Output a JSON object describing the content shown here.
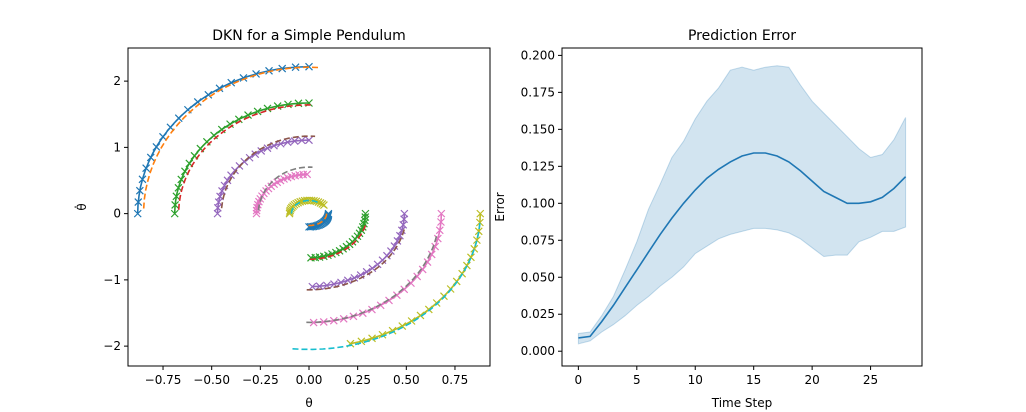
{
  "chart_data": [
    {
      "type": "line",
      "title": "DKN for a Simple Pendulum",
      "xlabel": "θ",
      "ylabel": "θ̇",
      "xlim": [
        -0.93,
        0.93
      ],
      "ylim": [
        -2.3,
        2.5
      ],
      "xticks": [
        -0.75,
        -0.5,
        -0.25,
        0.0,
        0.25,
        0.5,
        0.75
      ],
      "xtick_labels": [
        "−0.75",
        "−0.50",
        "−0.25",
        "0.00",
        "0.25",
        "0.50",
        "0.75"
      ],
      "yticks": [
        -2,
        -1,
        0,
        1,
        2
      ],
      "ytick_labels": [
        "−2",
        "−1",
        "0",
        "1",
        "2"
      ],
      "grid": false,
      "note": "Each trajectory: predicted (solid/dashed line) vs measured (x markers), arcs of phase-space orbits",
      "series": [
        {
          "color": "#1f77b4",
          "style": "solid+x",
          "amplitude": 0.88,
          "start_angle": 180,
          "end_angle": 90,
          "yscale": 2.52
        },
        {
          "color": "#ff7f0e",
          "style": "dashed",
          "amplitude": 0.85,
          "start_angle": 178,
          "end_angle": 86,
          "yscale": 2.6
        },
        {
          "color": "#2ca02c",
          "style": "solid+x",
          "amplitude": 0.69,
          "start_angle": 180,
          "end_angle": 90,
          "yscale": 2.42
        },
        {
          "color": "#d62728",
          "style": "dashed",
          "amplitude": 0.67,
          "start_angle": 178,
          "end_angle": 88,
          "yscale": 2.45
        },
        {
          "color": "#9467bd",
          "style": "solid+x",
          "amplitude": 0.47,
          "start_angle": 180,
          "end_angle": 90,
          "yscale": 2.36
        },
        {
          "color": "#8c564b",
          "style": "dashed",
          "amplitude": 0.45,
          "start_angle": 176,
          "end_angle": 86,
          "yscale": 2.6
        },
        {
          "color": "#e377c2",
          "style": "solid+x",
          "amplitude": 0.27,
          "start_angle": 180,
          "end_angle": 92,
          "yscale": 2.2
        },
        {
          "color": "#7f7f7f",
          "style": "dashed",
          "amplitude": 0.26,
          "start_angle": 176,
          "end_angle": 86,
          "yscale": 2.7
        },
        {
          "color": "#bcbd22",
          "style": "solid+x",
          "amplitude": 0.1,
          "start_angle": 180,
          "end_angle": 40,
          "yscale": 2.0
        },
        {
          "color": "#17becf",
          "style": "dashed",
          "amplitude": 0.09,
          "start_angle": 180,
          "end_angle": 60,
          "yscale": 2.2
        },
        {
          "color": "#1f77b4",
          "style": "solid+x",
          "amplitude": 0.1,
          "start_angle": 0,
          "end_angle": -90,
          "yscale": 2.0
        },
        {
          "color": "#ff7f0e",
          "style": "dashed",
          "amplitude": 0.09,
          "start_angle": 0,
          "end_angle": -100,
          "yscale": 2.0
        },
        {
          "color": "#2ca02c",
          "style": "solid+x",
          "amplitude": 0.29,
          "start_angle": 0,
          "end_angle": -88,
          "yscale": 2.3
        },
        {
          "color": "#d62728",
          "style": "dashed",
          "amplitude": 0.3,
          "start_angle": -15,
          "end_angle": -92,
          "yscale": 2.3
        },
        {
          "color": "#9467bd",
          "style": "solid+x",
          "amplitude": 0.49,
          "start_angle": 0,
          "end_angle": -88,
          "yscale": 2.25
        },
        {
          "color": "#8c564b",
          "style": "dashed",
          "amplitude": 0.5,
          "start_angle": -12,
          "end_angle": -92,
          "yscale": 2.3
        },
        {
          "color": "#e377c2",
          "style": "solid+x",
          "amplitude": 0.68,
          "start_angle": 0,
          "end_angle": -88,
          "yscale": 2.42
        },
        {
          "color": "#7f7f7f",
          "style": "dashed",
          "amplitude": 0.67,
          "start_angle": -12,
          "end_angle": -92,
          "yscale": 2.45
        },
        {
          "color": "#bcbd22",
          "style": "solid+x",
          "amplitude": 0.88,
          "start_angle": 0,
          "end_angle": -76,
          "yscale": 2.3
        },
        {
          "color": "#17becf",
          "style": "dashed",
          "amplitude": 0.88,
          "start_angle": -4,
          "end_angle": -96,
          "yscale": 2.33
        }
      ]
    },
    {
      "type": "line",
      "title": "Prediction Error",
      "xlabel": "Time Step",
      "ylabel": "Error",
      "xlim": [
        -1.4,
        29.4
      ],
      "ylim": [
        -0.01,
        0.205
      ],
      "xticks": [
        0,
        5,
        10,
        15,
        20,
        25
      ],
      "xtick_labels": [
        "0",
        "5",
        "10",
        "15",
        "20",
        "25"
      ],
      "yticks": [
        0,
        0.025,
        0.05,
        0.075,
        0.1,
        0.125,
        0.15,
        0.175,
        0.2
      ],
      "ytick_labels": [
        "0.000",
        "0.025",
        "0.050",
        "0.075",
        "0.100",
        "0.125",
        "0.150",
        "0.175",
        "0.200"
      ],
      "grid": false,
      "color": "#1f77b4",
      "x": [
        0,
        1,
        2,
        3,
        4,
        5,
        6,
        7,
        8,
        9,
        10,
        11,
        12,
        13,
        14,
        15,
        16,
        17,
        18,
        19,
        20,
        21,
        22,
        23,
        24,
        25,
        26,
        27,
        28
      ],
      "mean": [
        0.009,
        0.01,
        0.02,
        0.031,
        0.043,
        0.055,
        0.067,
        0.079,
        0.09,
        0.1,
        0.109,
        0.117,
        0.123,
        0.128,
        0.132,
        0.134,
        0.134,
        0.132,
        0.128,
        0.122,
        0.115,
        0.108,
        0.104,
        0.1,
        0.1,
        0.101,
        0.104,
        0.11,
        0.118
      ],
      "upper": [
        0.012,
        0.013,
        0.024,
        0.037,
        0.055,
        0.074,
        0.096,
        0.113,
        0.131,
        0.142,
        0.157,
        0.169,
        0.178,
        0.19,
        0.192,
        0.19,
        0.192,
        0.193,
        0.192,
        0.18,
        0.169,
        0.161,
        0.153,
        0.145,
        0.137,
        0.131,
        0.133,
        0.143,
        0.158
      ],
      "lower": [
        0.005,
        0.007,
        0.013,
        0.018,
        0.024,
        0.031,
        0.037,
        0.044,
        0.05,
        0.057,
        0.066,
        0.071,
        0.076,
        0.079,
        0.081,
        0.083,
        0.083,
        0.082,
        0.08,
        0.076,
        0.07,
        0.064,
        0.065,
        0.065,
        0.074,
        0.077,
        0.081,
        0.081,
        0.084
      ]
    }
  ]
}
